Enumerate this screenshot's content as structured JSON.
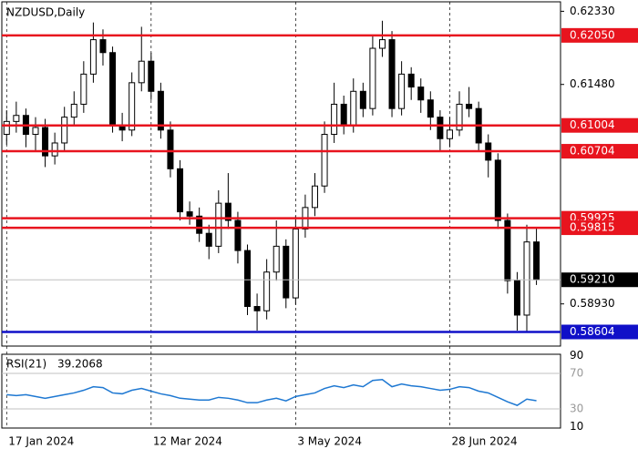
{
  "chart_data": {
    "type": "candlestick",
    "title": "NZDUSD,Daily",
    "open": [
      0.609,
      0.6105,
      0.6112,
      0.609,
      0.6098,
      0.6065,
      0.608,
      0.611,
      0.6125,
      0.616,
      0.62,
      0.6185,
      0.61,
      0.6095,
      0.615,
      0.6175,
      0.614,
      0.6095,
      0.605,
      0.6,
      0.5995,
      0.5975,
      0.596,
      0.601,
      0.599,
      0.5955,
      0.589,
      0.5885,
      0.593,
      0.596,
      0.59,
      0.598,
      0.6005,
      0.603,
      0.609,
      0.6125,
      0.61,
      0.614,
      0.612,
      0.619,
      0.62,
      0.612,
      0.616,
      0.6145,
      0.613,
      0.611,
      0.6085,
      0.6095,
      0.6125,
      0.612,
      0.608,
      0.606,
      0.599,
      0.592,
      0.588,
      0.5965
    ],
    "high": [
      0.6118,
      0.6128,
      0.612,
      0.611,
      0.6108,
      0.6092,
      0.6122,
      0.614,
      0.6175,
      0.622,
      0.6212,
      0.6192,
      0.6115,
      0.6162,
      0.6215,
      0.6185,
      0.615,
      0.6105,
      0.606,
      0.6012,
      0.6005,
      0.5985,
      0.6025,
      0.6045,
      0.6,
      0.5962,
      0.5905,
      0.5945,
      0.599,
      0.5968,
      0.5995,
      0.602,
      0.6045,
      0.6105,
      0.615,
      0.6135,
      0.6155,
      0.615,
      0.6205,
      0.6222,
      0.621,
      0.6175,
      0.6168,
      0.6155,
      0.614,
      0.6118,
      0.611,
      0.614,
      0.6145,
      0.6128,
      0.609,
      0.6068,
      0.5998,
      0.593,
      0.5985,
      0.5982
    ],
    "low": [
      0.6078,
      0.6092,
      0.6075,
      0.607,
      0.6052,
      0.6055,
      0.607,
      0.61,
      0.6115,
      0.615,
      0.617,
      0.6092,
      0.6082,
      0.6088,
      0.614,
      0.613,
      0.6085,
      0.604,
      0.599,
      0.5985,
      0.5965,
      0.5945,
      0.5952,
      0.598,
      0.594,
      0.588,
      0.5862,
      0.5875,
      0.592,
      0.5888,
      0.5892,
      0.597,
      0.5995,
      0.6022,
      0.608,
      0.609,
      0.6092,
      0.611,
      0.6112,
      0.618,
      0.611,
      0.6112,
      0.613,
      0.6115,
      0.6095,
      0.607,
      0.6075,
      0.6088,
      0.611,
      0.607,
      0.604,
      0.598,
      0.5905,
      0.5862,
      0.586,
      0.5915
    ],
    "close": [
      0.6105,
      0.6112,
      0.609,
      0.6098,
      0.6065,
      0.608,
      0.611,
      0.6125,
      0.616,
      0.62,
      0.6185,
      0.61,
      0.6095,
      0.615,
      0.6175,
      0.614,
      0.6095,
      0.605,
      0.6,
      0.5995,
      0.5975,
      0.596,
      0.601,
      0.599,
      0.5955,
      0.589,
      0.5885,
      0.593,
      0.596,
      0.59,
      0.598,
      0.6005,
      0.603,
      0.609,
      0.6125,
      0.61,
      0.614,
      0.612,
      0.619,
      0.62,
      0.612,
      0.616,
      0.6145,
      0.613,
      0.611,
      0.6085,
      0.6095,
      0.6125,
      0.612,
      0.608,
      0.606,
      0.599,
      0.592,
      0.588,
      0.5965,
      0.5921
    ],
    "ylim": [
      0.5844,
      0.6244
    ],
    "yticks": [
      {
        "value": 0.6233,
        "label": "0.62330"
      },
      {
        "value": 0.6148,
        "label": "0.61480"
      },
      {
        "value": 0.5893,
        "label": "0.58930"
      }
    ],
    "xlim": [
      -0.5,
      57.5
    ],
    "xticks": [
      {
        "value": 0,
        "label": "17 Jan 2024"
      },
      {
        "value": 15,
        "label": "12 Mar 2024"
      },
      {
        "value": 30,
        "label": "3 May 2024"
      },
      {
        "value": 46,
        "label": "28 Jun 2024"
      }
    ],
    "levels": [
      {
        "value": 0.6205,
        "label": "0.62050",
        "color": "#e8141e"
      },
      {
        "value": 0.61004,
        "label": "0.61004",
        "color": "#e8141e"
      },
      {
        "value": 0.60704,
        "label": "0.60704",
        "color": "#e8141e"
      },
      {
        "value": 0.59925,
        "label": "0.59925",
        "color": "#e8141e"
      },
      {
        "value": 0.59815,
        "label": "0.59815",
        "color": "#e8141e"
      },
      {
        "value": 0.58604,
        "label": "0.58604",
        "color": "#1010c8"
      }
    ],
    "current": {
      "value": 0.5921,
      "label": "0.59210",
      "color": "#000000"
    },
    "rsi": {
      "title": "RSI(21)",
      "color": "#1e78d2",
      "ylim": [
        8.5,
        91.5
      ],
      "yticks": [
        90,
        70,
        30,
        10
      ],
      "levels": [
        70,
        30
      ],
      "values": [
        46,
        45,
        46,
        44,
        42,
        44,
        46,
        48,
        51,
        55,
        54,
        48,
        47,
        51,
        53,
        50,
        47,
        45,
        42,
        41,
        40,
        40,
        43,
        42,
        40,
        37,
        37,
        40,
        42,
        39,
        44,
        46,
        48,
        53,
        56,
        54,
        57,
        55,
        62,
        63,
        55,
        58,
        56,
        55,
        53,
        51,
        52,
        55,
        54,
        50,
        48,
        43,
        38,
        34,
        41,
        39.2068
      ]
    }
  }
}
